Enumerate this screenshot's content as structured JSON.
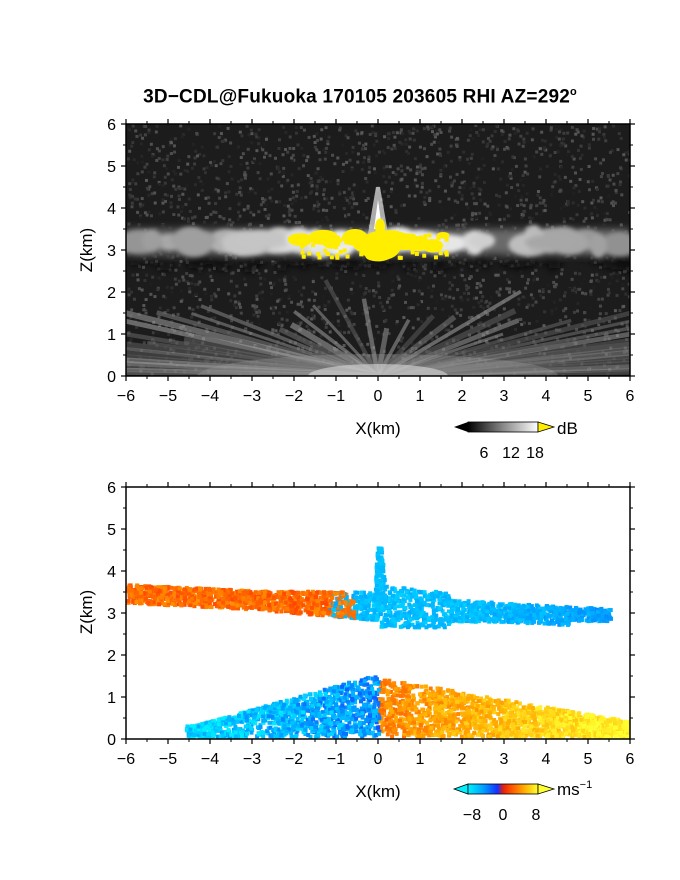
{
  "title": {
    "main": "3D−CDL@Fukuoka 170105 203605 RHI AZ=292",
    "degree": "o"
  },
  "colors": {
    "accent_yellow": "#ffee00",
    "neg_cyan": "#00e0ff",
    "neg_blue": "#1a3dff",
    "pos_red": "#ff3300",
    "pos_yellow": "#ffd400"
  },
  "chart_data": [
    {
      "type": "heatmap",
      "variable": "reflectivity",
      "xlabel": "X(km)",
      "ylabel": "Z(km)",
      "xlim": [
        -6,
        6
      ],
      "ylim": [
        0,
        6
      ],
      "xticks": [
        "−6",
        "−5",
        "−4",
        "−3",
        "−2",
        "−1",
        "0",
        "1",
        "2",
        "3",
        "4",
        "5",
        "6"
      ],
      "yticks": [
        "0",
        "1",
        "2",
        "3",
        "4",
        "5",
        "6"
      ],
      "colorbar": {
        "unit": "dB",
        "ticks": [
          "6",
          "12",
          "18"
        ],
        "range": [
          0,
          20
        ],
        "saturation_color": "#ffee00"
      },
      "layers": [
        {
          "name": "cloud layer",
          "z_base": 2.9,
          "z_top": 3.5,
          "x_range": [
            -6,
            6
          ]
        },
        {
          "name": "saturated core",
          "z_base": 2.7,
          "z_top": 3.4,
          "x_range": [
            -1.9,
            1.7
          ]
        },
        {
          "name": "vertical plume",
          "x": 0,
          "z_top": 4.5
        },
        {
          "name": "near-ground fan",
          "z_base": 0,
          "z_top": 1.4,
          "x_range": [
            -6,
            6
          ]
        }
      ],
      "grid": false
    },
    {
      "type": "heatmap",
      "variable": "doppler velocity",
      "xlabel": "X(km)",
      "ylabel": "Z(km)",
      "xlim": [
        -6,
        6
      ],
      "ylim": [
        0,
        6
      ],
      "xticks": [
        "−6",
        "−5",
        "−4",
        "−3",
        "−2",
        "−1",
        "0",
        "1",
        "2",
        "3",
        "4",
        "5",
        "6"
      ],
      "yticks": [
        "0",
        "1",
        "2",
        "3",
        "4",
        "5",
        "6"
      ],
      "colorbar": {
        "unit": "ms",
        "unit_exponent": "−1",
        "ticks": [
          "−8",
          "0",
          "8"
        ],
        "range": [
          -10,
          10
        ]
      },
      "regions": [
        {
          "name": "upper layer west",
          "x_range": [
            -6,
            -1.2
          ],
          "z_range": [
            2.9,
            3.5
          ],
          "velocity": 3
        },
        {
          "name": "upper layer east",
          "x_range": [
            -1.2,
            5.5
          ],
          "z_range": [
            2.5,
            3.5
          ],
          "velocity": -7
        },
        {
          "name": "plume",
          "x": 0,
          "z_top": 4.6,
          "velocity": -7
        },
        {
          "name": "lower layer west",
          "x_range": [
            -4.5,
            0
          ],
          "z_range": [
            0,
            1.4
          ],
          "velocity": -8
        },
        {
          "name": "lower layer east",
          "x_range": [
            0,
            6
          ],
          "z_range": [
            0,
            1.3
          ],
          "velocity": 6
        }
      ],
      "grid": false
    }
  ]
}
